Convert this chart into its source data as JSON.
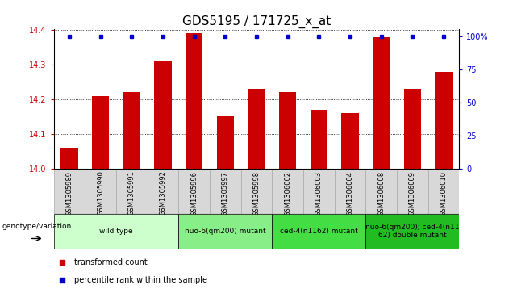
{
  "title": "GDS5195 / 171725_x_at",
  "samples": [
    "GSM1305989",
    "GSM1305990",
    "GSM1305991",
    "GSM1305992",
    "GSM1305996",
    "GSM1305997",
    "GSM1305998",
    "GSM1306002",
    "GSM1306003",
    "GSM1306004",
    "GSM1306008",
    "GSM1306009",
    "GSM1306010"
  ],
  "red_values": [
    14.06,
    14.21,
    14.22,
    14.31,
    14.39,
    14.15,
    14.23,
    14.22,
    14.17,
    14.16,
    14.38,
    14.23,
    14.28
  ],
  "blue_values": [
    100,
    100,
    100,
    100,
    100,
    100,
    100,
    100,
    100,
    100,
    100,
    100,
    100
  ],
  "ymin": 14.0,
  "ymax": 14.4,
  "y_ticks": [
    14.0,
    14.1,
    14.2,
    14.3,
    14.4
  ],
  "y2_ticks": [
    0,
    25,
    50,
    75,
    100
  ],
  "bar_color": "#cc0000",
  "dot_color": "#0000cc",
  "groups": [
    {
      "label": "wild type",
      "start": 0,
      "end": 4,
      "color": "#ccffcc"
    },
    {
      "label": "nuo-6(qm200) mutant",
      "start": 4,
      "end": 7,
      "color": "#88ee88"
    },
    {
      "label": "ced-4(n1162) mutant",
      "start": 7,
      "end": 10,
      "color": "#44dd44"
    },
    {
      "label": "nuo-6(qm200); ced-4(n11\n62) double mutant",
      "start": 10,
      "end": 13,
      "color": "#22bb22"
    }
  ],
  "legend_items": [
    {
      "label": "transformed count",
      "color": "#cc0000"
    },
    {
      "label": "percentile rank within the sample",
      "color": "#0000cc"
    }
  ],
  "genotype_label": "genotype/variation",
  "bar_color_tick": "#cc0000",
  "y2label_color": "#0000cc",
  "title_fontsize": 11,
  "tick_fontsize": 7,
  "sample_fontsize": 6,
  "bar_width": 0.55,
  "background_color": "#ffffff",
  "sample_bg": "#d8d8d8",
  "sample_border": "#aaaaaa"
}
